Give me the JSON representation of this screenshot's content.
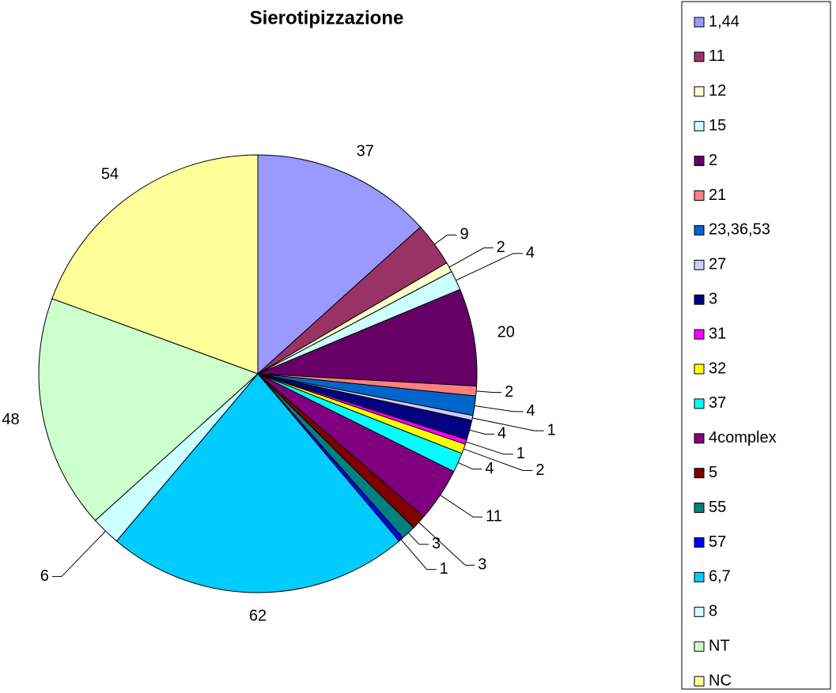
{
  "chart_data": {
    "type": "pie",
    "title": "Sierotipizzazione",
    "categories": [
      "1,44",
      "11",
      "12",
      "15",
      "2",
      "21",
      "23,36,53",
      "27",
      "3",
      "31",
      "32",
      "37",
      "4complex",
      "5",
      "55",
      "57",
      "6,7",
      "8",
      "NT",
      "NC"
    ],
    "values": [
      37,
      9,
      2,
      4,
      20,
      2,
      4,
      1,
      4,
      1,
      2,
      4,
      11,
      3,
      3,
      1,
      62,
      6,
      48,
      54
    ],
    "colors": [
      "#9999ff",
      "#993366",
      "#ffffcc",
      "#ccffff",
      "#660066",
      "#ff8080",
      "#0066cc",
      "#ccccff",
      "#000080",
      "#ff00ff",
      "#ffff00",
      "#00ffff",
      "#800080",
      "#800000",
      "#008080",
      "#0000ff",
      "#00ccff",
      "#ccffff",
      "#ccffcc",
      "#ffff99"
    ],
    "legend": "right"
  }
}
